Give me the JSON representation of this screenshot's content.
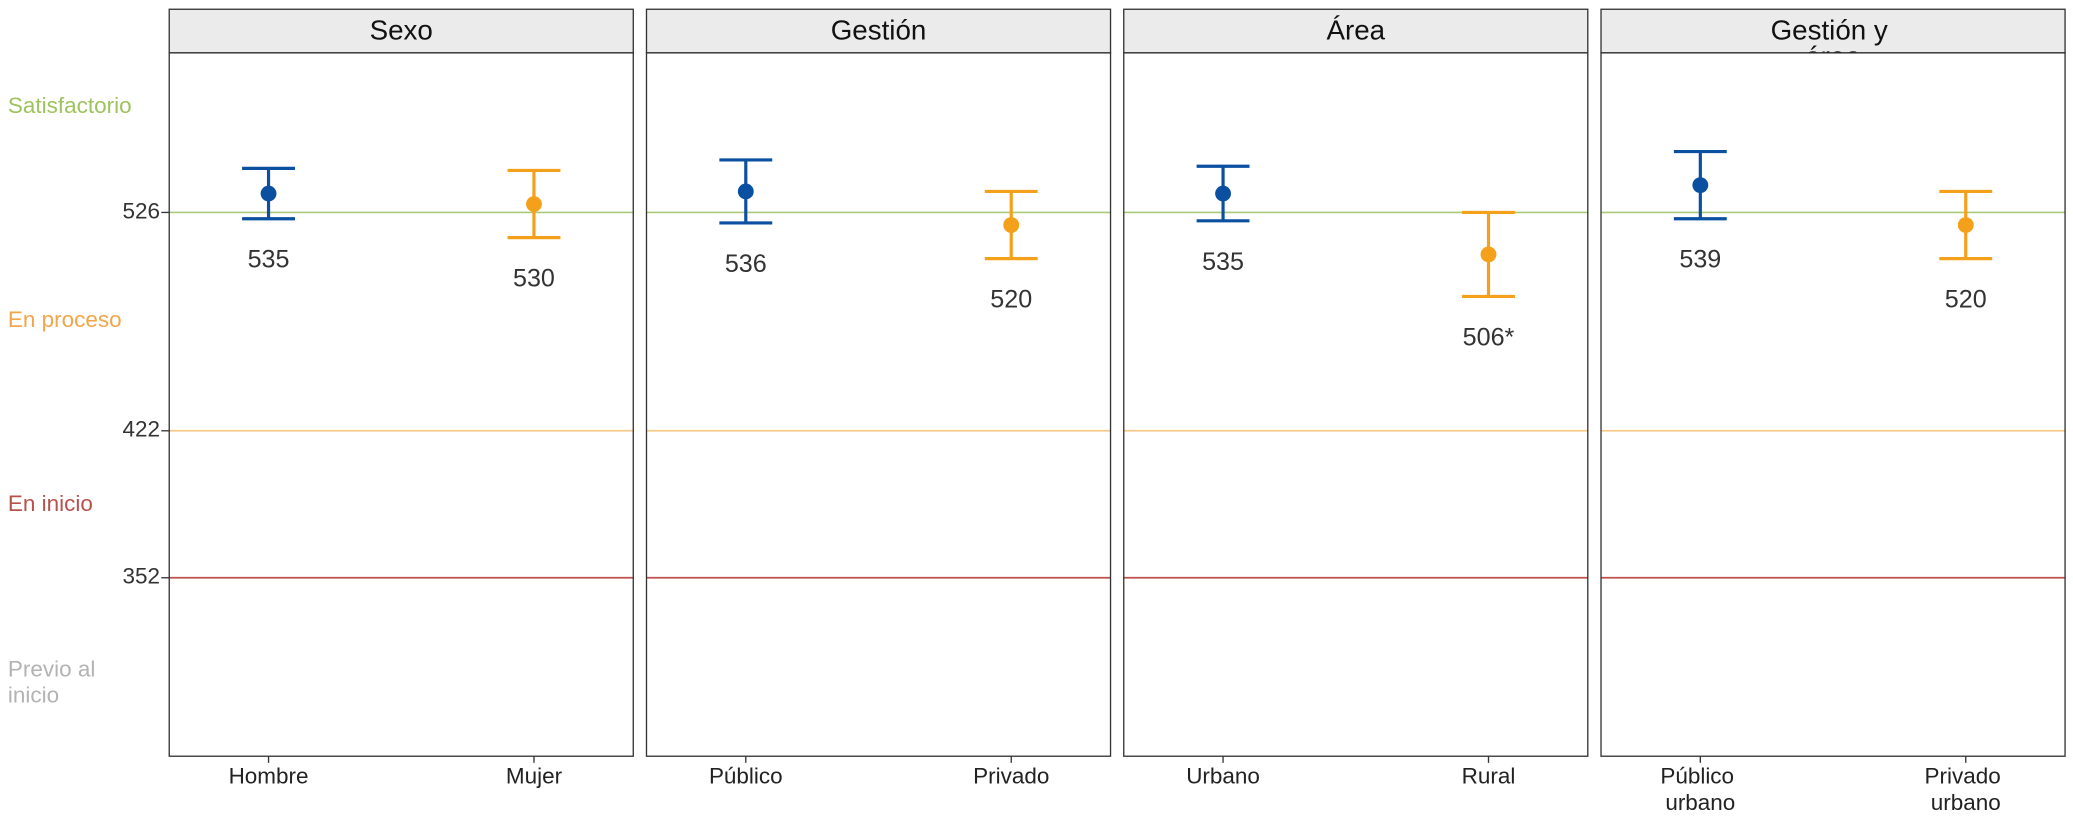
{
  "chart_data": {
    "type": "errorbar",
    "ylim": [
      267,
      602
    ],
    "yticks": [
      352,
      422,
      526
    ],
    "ytick_colors": [
      "#c0504d",
      "#f5c98a",
      "#a9c97a"
    ],
    "levels": [
      {
        "label": "Satisfactorio",
        "color": "#9dc35e"
      },
      {
        "label": "En proceso",
        "color": "#f2a54a"
      },
      {
        "label": "En inicio",
        "color": "#b5524c"
      },
      {
        "label": "Previo al inicio",
        "color": "#b3b3b3"
      }
    ],
    "series_colors": [
      "#0a4fa0",
      "#f5a01a"
    ],
    "panels": [
      {
        "title": "Sexo",
        "categories": [
          "Hombre",
          "Mujer"
        ],
        "values": [
          535,
          530
        ],
        "errors": [
          12,
          16
        ]
      },
      {
        "title": "Gestión",
        "categories": [
          "Público",
          "Privado"
        ],
        "values": [
          536,
          520
        ],
        "errors": [
          15,
          16
        ]
      },
      {
        "title": "Área",
        "categories": [
          "Urbano",
          "Rural"
        ],
        "values": [
          535,
          506
        ],
        "errors": [
          13,
          20
        ],
        "value_labels": [
          "535",
          "506*"
        ]
      },
      {
        "title": "Gestión y área",
        "categories": [
          "Público urbano",
          "Privado urbano"
        ],
        "values": [
          539,
          520
        ],
        "errors": [
          16,
          16
        ]
      }
    ]
  }
}
